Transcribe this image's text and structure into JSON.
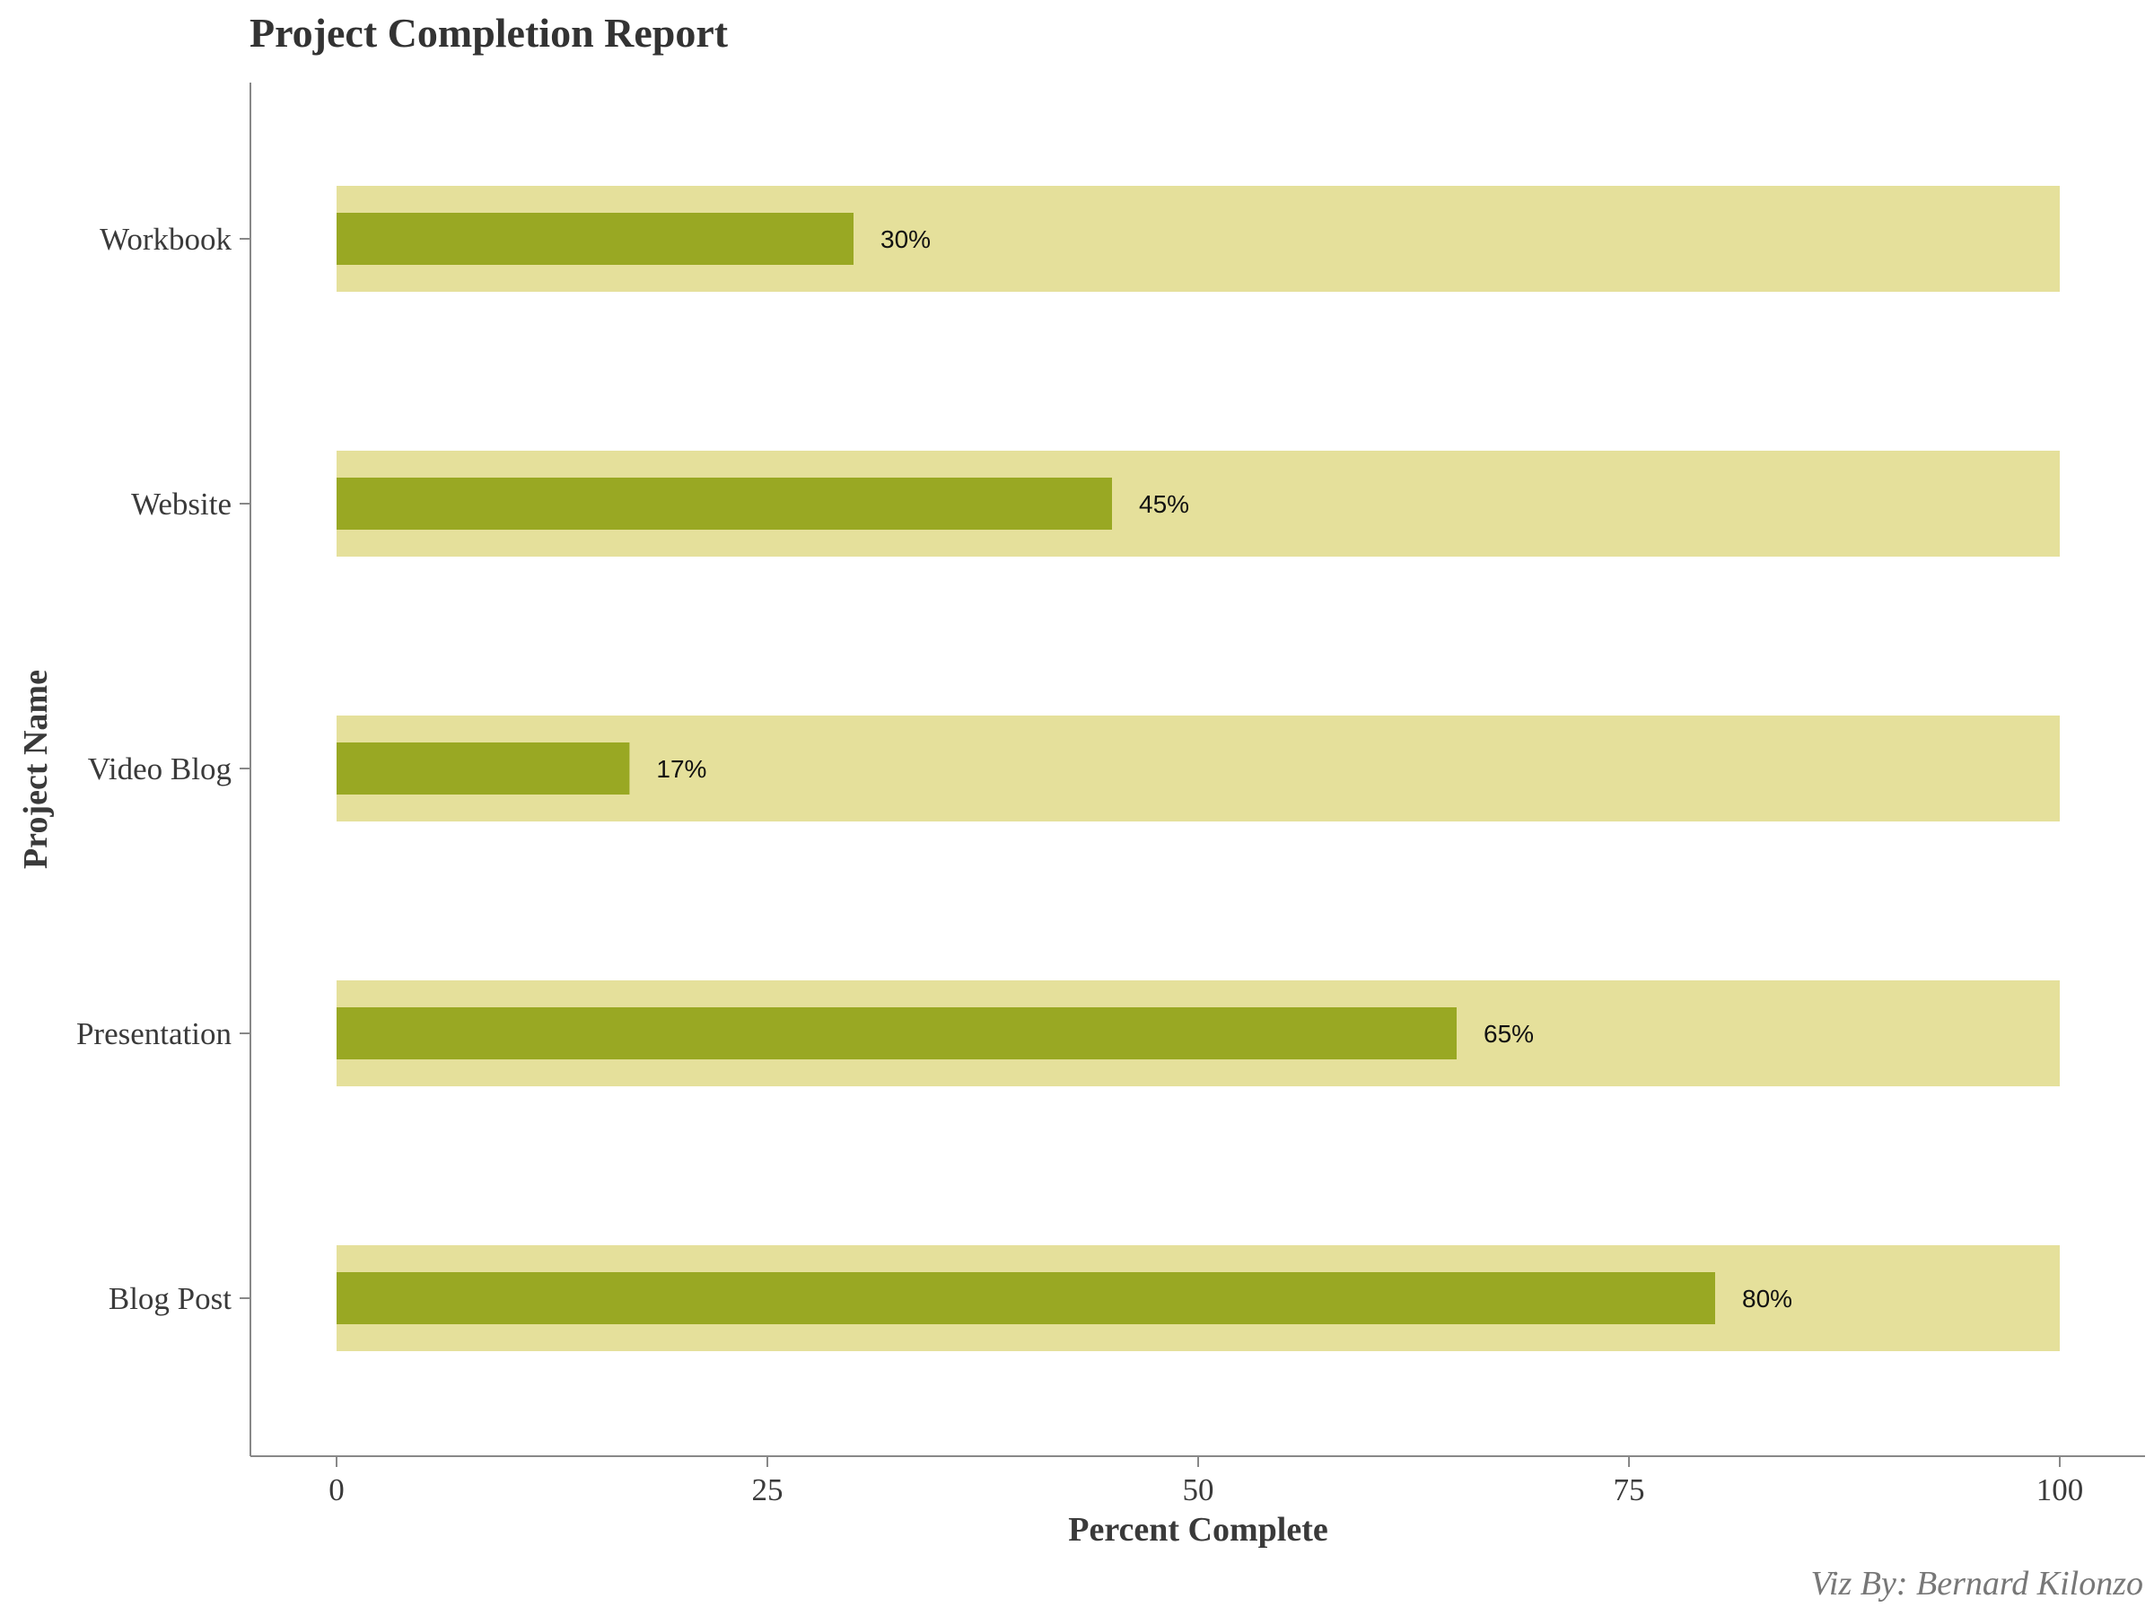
{
  "chart_data": {
    "type": "bar",
    "orientation": "horizontal",
    "title": "Project Completion Report",
    "xlabel": "Percent Complete",
    "ylabel": "Project Name",
    "categories": [
      "Workbook",
      "Website",
      "Video Blog",
      "Presentation",
      "Blog Post"
    ],
    "series": [
      {
        "values": [
          100,
          100,
          100,
          100,
          100
        ]
      },
      {
        "values": [
          30,
          45,
          17,
          65,
          80
        ]
      }
    ],
    "data_labels": [
      "30%",
      "45%",
      "17%",
      "65%",
      "80%"
    ],
    "xlim": [
      0,
      100
    ],
    "xticks": [
      0,
      25,
      50,
      75,
      100
    ],
    "xtick_labels": [
      "0",
      "25",
      "50",
      "75",
      "100"
    ],
    "grid": false,
    "caption": "Viz By: Bernard Kilonzo",
    "colors": {
      "background_bar": "#e5e09b",
      "progress_bar": "#99a823",
      "axis": "#888888"
    }
  }
}
